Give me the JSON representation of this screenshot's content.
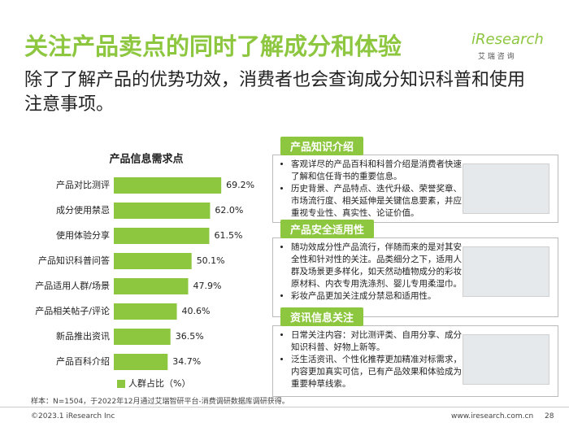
{
  "header": {
    "title": "关注产品卖点的同时了解成分和体验",
    "subtitle": "除了了解产品的优势功效，消费者也会查询成分知识科普和使用注意事项。"
  },
  "logo": {
    "brand": "iResearch",
    "cn": "艾 瑞 咨 询"
  },
  "chart_data": {
    "type": "bar",
    "orientation": "horizontal",
    "title": "产品信息需求点",
    "categories": [
      "产品对比测评",
      "成分使用禁忌",
      "使用体验分享",
      "产品知识科普问答",
      "产品适用人群/场景",
      "产品相关帖子/评论",
      "新品推出资讯",
      "产品百科介绍"
    ],
    "series": [
      {
        "name": "人群占比（%）",
        "color": "#8dc63f",
        "values": [
          69.2,
          62.0,
          61.5,
          50.1,
          47.9,
          40.6,
          36.5,
          34.7
        ],
        "value_labels": [
          "69.2%",
          "62.0%",
          "61.5%",
          "50.1%",
          "47.9%",
          "40.6%",
          "36.5%",
          "34.7%"
        ]
      }
    ]
  },
  "panels": [
    {
      "title": "产品知识介绍",
      "bullets": [
        "客观详尽的产品百科和科普介绍是消费者快速了解和信任背书的重要信息。",
        "历史背景、产品特点、迭代升级、荣誉奖章、市场流行度、相关延伸是关键信息要素，并应重视专业性、真实性、论证价值。"
      ]
    },
    {
      "title": "产品安全适用性",
      "bullets": [
        "随功效成分性产品流行，伴随而来的是对其安全性和针对性的关注。品类细分之下，适用人群及场景更多样化，如天然动植物成分的彩妆原材料、内衣专用洗涤剂、婴儿专用柔湿巾。",
        "彩妆产品更加关注成分禁忌和适用性。"
      ]
    },
    {
      "title": "资讯信息关注",
      "bullets": [
        "日常关注内容：对比测评类、自用分享、成分知识科普、好物上新等。",
        "泛生活资讯、个性化推荐更加精准对标需求，内容更加真实可信，已有产品效果和体验成为重要种草线索。"
      ]
    }
  ],
  "note": "样本：N=1504，于2022年12月通过艾瑞智研平台-消费调研数据库调研获得。",
  "footer": {
    "copyright": "©2023.1 iResearch Inc",
    "website": "www.iresearch.com.cn",
    "page": "28"
  }
}
